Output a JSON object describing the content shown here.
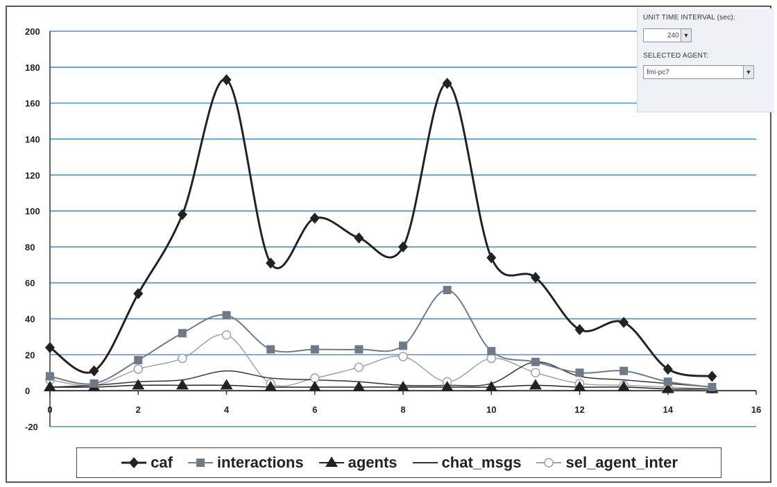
{
  "chart_data": {
    "type": "line",
    "title": "",
    "xlabel": "",
    "ylabel": "",
    "xlim": [
      0,
      16
    ],
    "ylim": [
      -20,
      200
    ],
    "x_ticks": [
      0,
      2,
      4,
      6,
      8,
      10,
      12,
      14,
      16
    ],
    "y_ticks": [
      -20,
      0,
      20,
      40,
      60,
      80,
      100,
      120,
      140,
      160,
      180,
      200
    ],
    "grid": "horizontal",
    "legend_position": "bottom",
    "series": [
      {
        "name": "caf",
        "color": "#222222",
        "marker": "diamond",
        "line_width": 3,
        "x": [
          0,
          1,
          2,
          3,
          4,
          5,
          6,
          7,
          8,
          9,
          10,
          11,
          12,
          13,
          14,
          15
        ],
        "values": [
          24,
          11,
          54,
          98,
          173,
          71,
          96,
          85,
          80,
          171,
          74,
          63,
          34,
          38,
          12,
          8
        ]
      },
      {
        "name": "interactions",
        "color": "#6e7a88",
        "marker": "square",
        "line_width": 2,
        "x": [
          0,
          1,
          2,
          3,
          4,
          5,
          6,
          7,
          8,
          9,
          10,
          11,
          12,
          13,
          14,
          15
        ],
        "values": [
          8,
          4,
          17,
          32,
          42,
          23,
          23,
          23,
          25,
          56,
          22,
          16,
          10,
          11,
          5,
          2
        ]
      },
      {
        "name": "agents",
        "color": "#222222",
        "marker": "triangle",
        "line_width": 1.5,
        "x": [
          0,
          1,
          2,
          3,
          4,
          5,
          6,
          7,
          8,
          9,
          10,
          11,
          12,
          13,
          14,
          15
        ],
        "values": [
          2,
          2,
          3,
          3,
          3,
          2,
          2,
          2,
          2,
          2,
          2,
          3,
          2,
          2,
          1,
          1
        ]
      },
      {
        "name": "chat_msgs",
        "color": "#333333",
        "marker": "none",
        "line_width": 1.5,
        "x": [
          0,
          1,
          2,
          3,
          4,
          5,
          6,
          7,
          8,
          9,
          10,
          11,
          12,
          13,
          14,
          15
        ],
        "values": [
          2,
          3,
          5,
          6,
          11,
          7,
          6,
          5,
          3,
          3,
          4,
          16,
          8,
          6,
          4,
          2
        ]
      },
      {
        "name": "sel_agent_inter",
        "color": "#9aa3ad",
        "marker": "circle-open",
        "line_width": 1.5,
        "x": [
          0,
          1,
          2,
          3,
          4,
          5,
          6,
          7,
          8,
          9,
          10,
          11,
          12,
          13,
          14,
          15
        ],
        "values": [
          6,
          3,
          12,
          18,
          31,
          4,
          7,
          13,
          19,
          5,
          18,
          10,
          4,
          3,
          2,
          1
        ]
      }
    ]
  },
  "control_panel": {
    "interval_label": "UNIT TIME INTERVAL (sec):",
    "interval_value": "240",
    "agent_label": "SELECTED AGENT:",
    "agent_value": "fmi-pc7",
    "dropdown_icon": "chevron-down-icon"
  },
  "colors": {
    "grid": "#4f8fb8",
    "axis": "#333333",
    "background": "#ffffff",
    "panel_bg": "#eef1f6"
  }
}
